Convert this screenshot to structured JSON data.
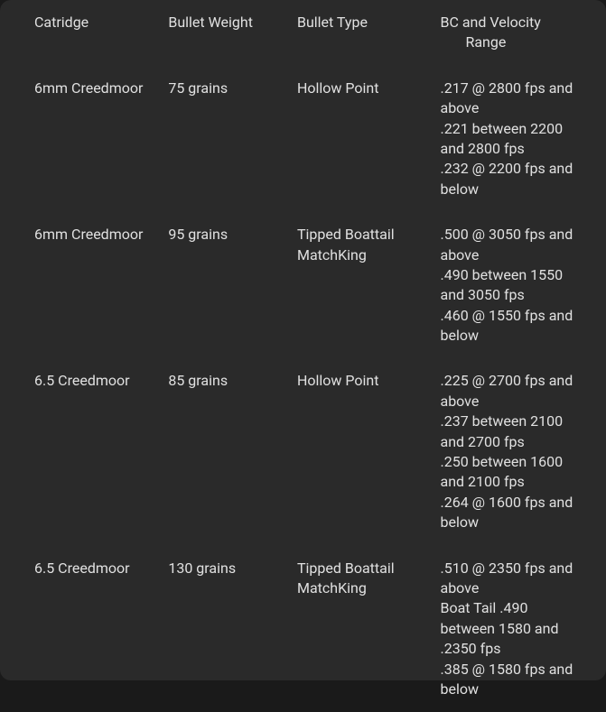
{
  "table": {
    "headers": {
      "col1": "Catridge",
      "col2": "Bullet Weight",
      "col3": "Bullet Type",
      "col4_line1": "BC and Velocity",
      "col4_line2": "Range"
    },
    "rows": [
      {
        "cartridge": "6mm Creedmoor",
        "bullet_weight": "75 grains",
        "bullet_type": "Hollow Point",
        "bc_lines": [
          ".217 @ 2800 fps and above",
          ".221 between 2200 and 2800 fps",
          ".232 @ 2200 fps and below"
        ]
      },
      {
        "cartridge": "6mm Creedmoor",
        "bullet_weight": "95 grains",
        "bullet_type": "Tipped Boattail MatchKing",
        "bc_lines": [
          ".500 @ 3050 fps and above",
          ".490 between 1550 and 3050 fps",
          ".460 @ 1550 fps and below"
        ]
      },
      {
        "cartridge": "6.5 Creedmoor",
        "bullet_weight": "85 grains",
        "bullet_type": "Hollow Point",
        "bc_lines": [
          ".225 @ 2700 fps and above",
          ".237 between 2100 and 2700 fps",
          ".250 between 1600 and 2100 fps",
          ".264 @ 1600 fps and below"
        ]
      },
      {
        "cartridge": "6.5 Creedmoor",
        "bullet_weight": "130 grains",
        "bullet_type": "Tipped Boattail MatchKing",
        "bc_lines": [
          ".510 @ 2350 fps and above",
          "Boat Tail .490 between 1580 and .2350 fps",
          ".385 @ 1580 fps and below"
        ]
      }
    ]
  },
  "styling": {
    "background_color": "#2a2a2a",
    "text_color": "#e0e0e0",
    "font_size": 16,
    "border_radius": 12
  }
}
